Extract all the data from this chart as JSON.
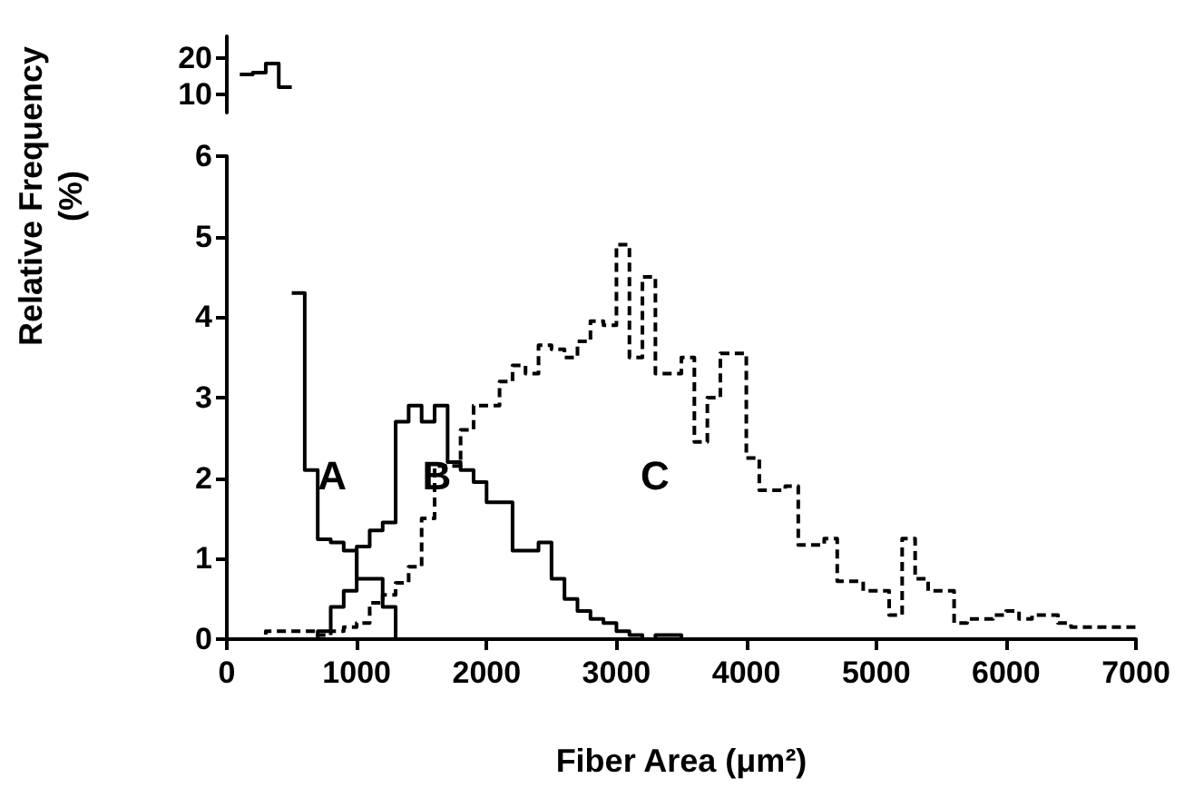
{
  "chart_data": [
    {
      "type": "histogram",
      "bins": [
        100,
        200,
        300,
        400,
        500
      ],
      "values": [
        15.5,
        16,
        18.5,
        12
      ],
      "color": "#000000",
      "xlim": [
        0,
        7000
      ],
      "ylim": [
        5,
        26
      ],
      "yticks": [
        10,
        20
      ],
      "tick_labels": "y"
    },
    {
      "type": "histogram",
      "xlabel": "Fiber Area (μm²)",
      "ylabel": "Relative Frequency (%)",
      "bins": [
        0,
        100,
        200,
        300,
        400,
        500,
        600,
        700,
        800,
        900,
        1000,
        1100,
        1200,
        1300,
        1400,
        1500,
        1600,
        1700,
        1800,
        1900,
        2000,
        2100,
        2200,
        2300,
        2400,
        2500,
        2600,
        2700,
        2800,
        2900,
        3000,
        3100,
        3200,
        3300,
        3400,
        3500,
        3600,
        3700,
        3800,
        3900,
        4000,
        4100,
        4200,
        4300,
        4400,
        4500,
        4600,
        4700,
        4800,
        4900,
        5000,
        5100,
        5200,
        5300,
        5400,
        5500,
        5600,
        5700,
        5800,
        5900,
        6000,
        6100,
        6200,
        6300,
        6400,
        6500,
        6600,
        6700,
        6800,
        6900,
        7000
      ],
      "series": [
        {
          "name": "A",
          "color": "#000000",
          "line_style": "solid",
          "bins": [
            500,
            600,
            700,
            800,
            900,
            1000,
            1100,
            1200,
            1300,
            1400,
            1500,
            1600,
            1700,
            1800,
            1900,
            2000,
            2100,
            2200,
            2300,
            2400,
            2500,
            2600,
            2700,
            2800,
            2900,
            3000,
            3100,
            3200,
            3300,
            3400,
            3500,
            3600,
            3700,
            3800,
            3900,
            4000,
            4100,
            4200,
            4300,
            4400,
            4500,
            4600,
            4700,
            4800,
            4900,
            5000,
            5100,
            5200,
            5300,
            5400,
            5500,
            5600,
            5700,
            5800,
            5900,
            6000,
            6100,
            6200,
            6300,
            6400,
            6500,
            6600,
            6700,
            6800,
            6900,
            7000
          ],
          "values": [
            4.3,
            2.1,
            1.24,
            1.2,
            1.1,
            0.75,
            0.75,
            0.4,
            0,
            0,
            0,
            0,
            0,
            0,
            0,
            0,
            0,
            0,
            0,
            0,
            0,
            0,
            0,
            0,
            0,
            0,
            0,
            0,
            0,
            0,
            0,
            0,
            0,
            0,
            0,
            0,
            0,
            0,
            0,
            0,
            0,
            0,
            0,
            0,
            0,
            0,
            0,
            0,
            0,
            0,
            0,
            0,
            0,
            0,
            0,
            0,
            0,
            0,
            0,
            0,
            0,
            0,
            0,
            0,
            0
          ]
        },
        {
          "name": "B",
          "color": "#000000",
          "line_style": "solid",
          "values": [
            0,
            0,
            0,
            0,
            0,
            0,
            0,
            0.1,
            0.4,
            0.6,
            1.15,
            1.35,
            1.45,
            2.7,
            2.9,
            2.7,
            2.9,
            2.2,
            2.1,
            1.95,
            1.7,
            1.7,
            1.1,
            1.1,
            1.2,
            0.75,
            0.5,
            0.35,
            0.25,
            0.2,
            0.1,
            0.05,
            0,
            0.05,
            0.05,
            0,
            0,
            0,
            0,
            0,
            0,
            0,
            0,
            0,
            0,
            0,
            0,
            0,
            0,
            0,
            0,
            0,
            0,
            0,
            0,
            0,
            0,
            0,
            0,
            0,
            0,
            0,
            0,
            0,
            0,
            0,
            0,
            0,
            0,
            0
          ]
        },
        {
          "name": "C",
          "color": "#000000",
          "line_style": "dashed",
          "values": [
            0,
            0,
            0,
            0.1,
            0.1,
            0.1,
            0.1,
            0.05,
            0.1,
            0.15,
            0.2,
            0.45,
            0.55,
            0.7,
            0.9,
            1.5,
            2.15,
            2.15,
            2.6,
            2.9,
            2.9,
            3.2,
            3.4,
            3.3,
            3.65,
            3.6,
            3.5,
            3.7,
            3.95,
            3.9,
            4.9,
            3.5,
            4.5,
            3.3,
            3.3,
            3.5,
            2.45,
            3.0,
            3.55,
            3.55,
            2.25,
            1.85,
            1.85,
            1.9,
            1.17,
            1.17,
            1.25,
            0.72,
            0.72,
            0.6,
            0.6,
            0.3,
            1.25,
            0.75,
            0.6,
            0.6,
            0.2,
            0.25,
            0.25,
            0.3,
            0.35,
            0.25,
            0.3,
            0.3,
            0.2,
            0.15,
            0.15,
            0.15,
            0.15,
            0.15
          ]
        }
      ],
      "xlim": [
        0,
        7000
      ],
      "xticks": [
        0,
        1000,
        2000,
        3000,
        4000,
        5000,
        6000,
        7000
      ],
      "ylim": [
        0,
        6
      ],
      "yticks": [
        0,
        1,
        2,
        3,
        4,
        5,
        6
      ]
    }
  ]
}
